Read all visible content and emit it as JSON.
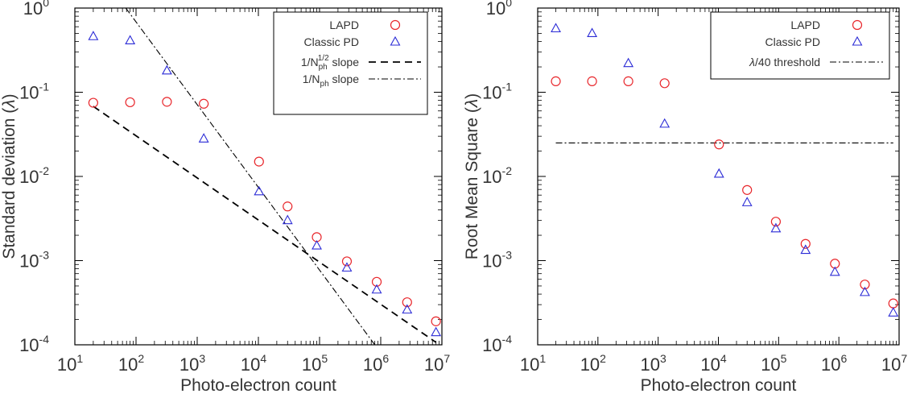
{
  "chart_data": [
    {
      "type": "scatter",
      "xlabel": "Photo-electron count",
      "ylabel": "Standard deviation (",
      "ylabel_symbol": "λ",
      "ylabel_end": ")",
      "xscale": "log",
      "yscale": "log",
      "xlim": [
        10,
        10000000
      ],
      "ylim": [
        0.0001,
        1
      ],
      "x_tick_labels": [
        "10",
        "10",
        "10",
        "10",
        "10",
        "10",
        "10"
      ],
      "x_tick_exponents": [
        "1",
        "2",
        "3",
        "4",
        "5",
        "6",
        "7"
      ],
      "y_tick_labels": [
        "10",
        "10",
        "10",
        "10",
        "10"
      ],
      "y_tick_exponents": [
        "-4",
        "-3",
        "-2",
        "-1",
        "0"
      ],
      "legend_position": "top-right",
      "series": [
        {
          "name": "LAPD",
          "marker": "circle",
          "color": "#e8262b",
          "x": [
            20,
            80,
            320,
            1280,
            10240,
            30000,
            90000,
            280000,
            860000,
            2700000,
            8000000
          ],
          "y": [
            0.075,
            0.076,
            0.077,
            0.073,
            0.015,
            0.0044,
            0.0019,
            0.00098,
            0.00056,
            0.00032,
            0.00019
          ]
        },
        {
          "name": "Classic PD",
          "marker": "triangle",
          "color": "#2b2bd6",
          "x": [
            20,
            80,
            320,
            1280,
            10240,
            30000,
            90000,
            280000,
            860000,
            2700000,
            8000000
          ],
          "y": [
            0.46,
            0.41,
            0.18,
            0.028,
            0.0066,
            0.003,
            0.0015,
            0.00082,
            0.00045,
            0.00026,
            0.00014
          ]
        },
        {
          "name": "1/N",
          "name_sub": "ph",
          "name_sup": "1/2",
          "name_suffix": " slope",
          "line_style": "dashed",
          "color": "#000000",
          "x": [
            20,
            8000000
          ],
          "y": [
            0.068,
            0.000107
          ]
        },
        {
          "name": "1/N",
          "name_sub": "ph",
          "name_suffix": " slope",
          "line_style": "dash-dot",
          "color": "#000000",
          "x": [
            68,
            800000
          ],
          "y": [
            1.0,
            0.0001
          ]
        }
      ]
    },
    {
      "type": "scatter",
      "xlabel": "Photo-electron count",
      "ylabel": "Root Mean Square (",
      "ylabel_symbol": "λ",
      "ylabel_end": ")",
      "xscale": "log",
      "yscale": "log",
      "xlim": [
        10,
        10000000
      ],
      "ylim": [
        0.0001,
        1
      ],
      "x_tick_labels": [
        "10",
        "10",
        "10",
        "10",
        "10",
        "10",
        "10"
      ],
      "x_tick_exponents": [
        "1",
        "2",
        "3",
        "4",
        "5",
        "6",
        "7"
      ],
      "y_tick_labels": [
        "10",
        "10",
        "10",
        "10",
        "10"
      ],
      "y_tick_exponents": [
        "-4",
        "-3",
        "-2",
        "-1",
        "0"
      ],
      "legend_position": "top-right",
      "series": [
        {
          "name": "LAPD",
          "marker": "circle",
          "color": "#e8262b",
          "x": [
            20,
            80,
            320,
            1280,
            10240,
            30000,
            90000,
            280000,
            860000,
            2700000,
            8000000
          ],
          "y": [
            0.135,
            0.135,
            0.135,
            0.128,
            0.024,
            0.0069,
            0.0029,
            0.00158,
            0.00092,
            0.00052,
            0.00031
          ]
        },
        {
          "name": "Classic PD",
          "marker": "triangle",
          "color": "#2b2bd6",
          "x": [
            20,
            80,
            320,
            1280,
            10240,
            30000,
            90000,
            280000,
            860000,
            2700000,
            8000000
          ],
          "y": [
            0.57,
            0.5,
            0.22,
            0.042,
            0.0107,
            0.0049,
            0.0024,
            0.00133,
            0.00073,
            0.00042,
            0.00024
          ]
        },
        {
          "name": "λ",
          "name_suffix": "/40 threshold",
          "line_style": "dash-dot",
          "color": "#000000",
          "x": [
            20,
            8000000
          ],
          "y": [
            0.025,
            0.025
          ]
        }
      ]
    }
  ]
}
